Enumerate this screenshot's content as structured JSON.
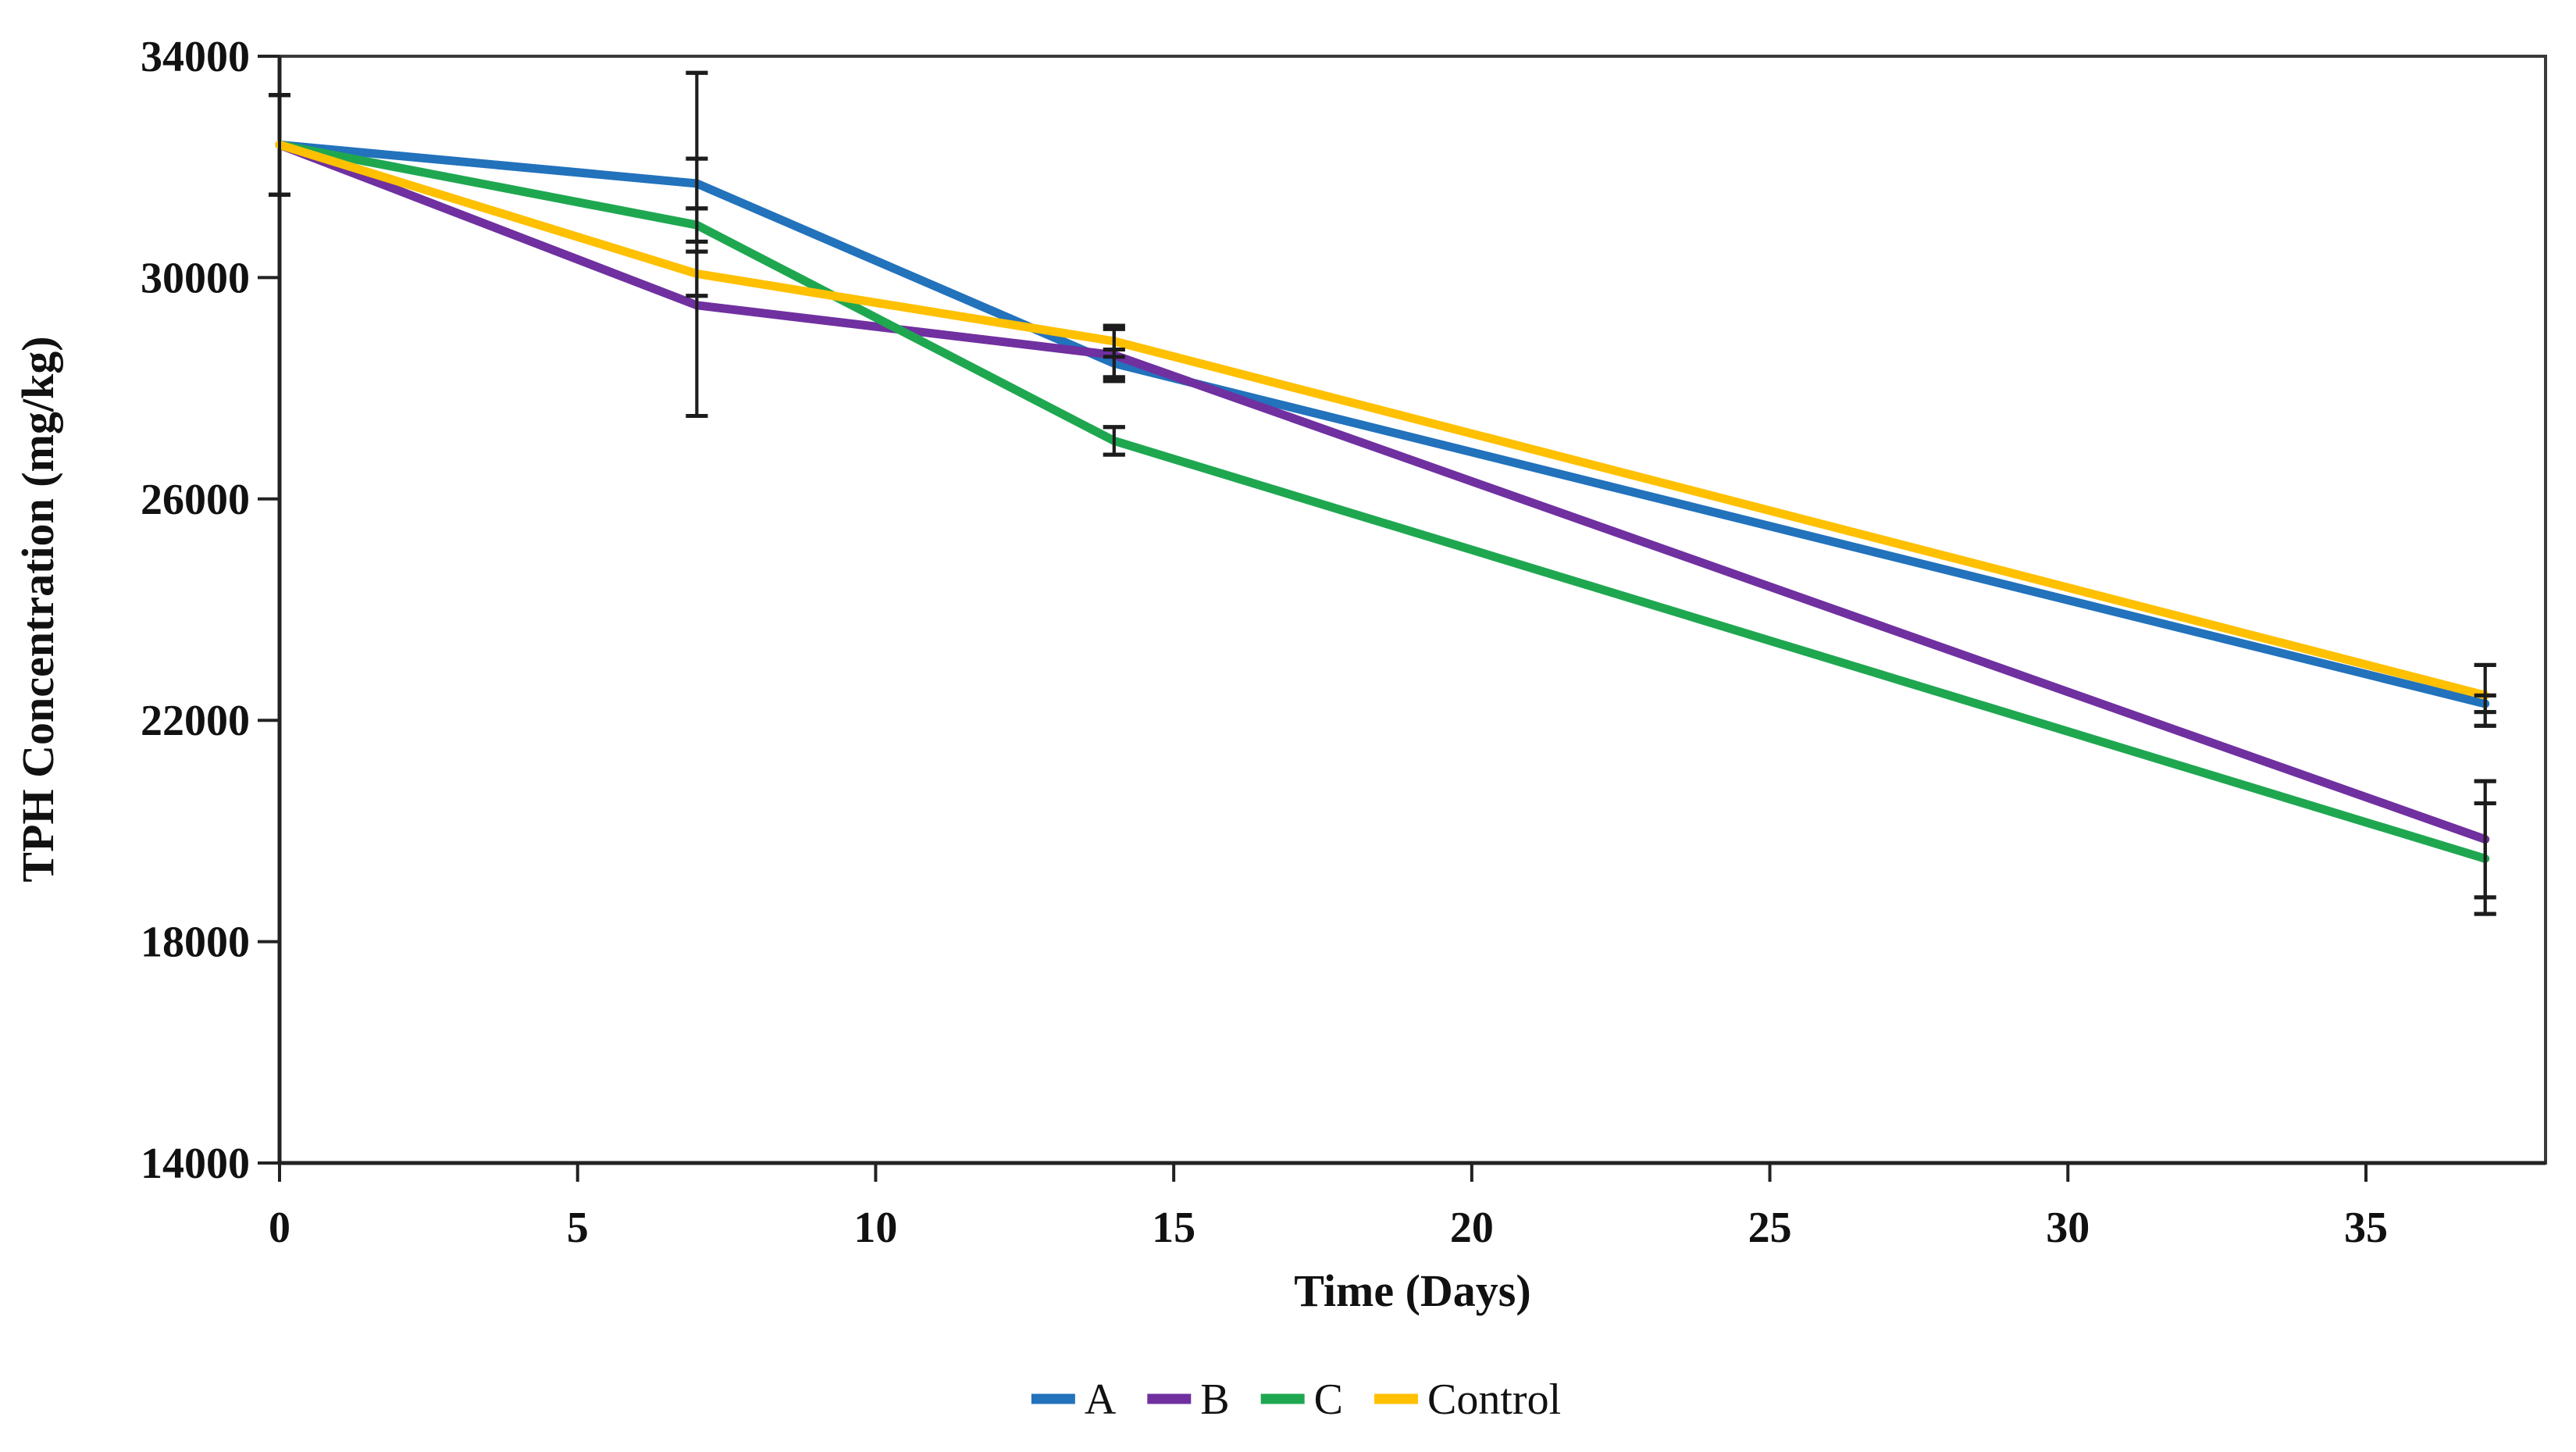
{
  "chart_data": {
    "type": "line",
    "title": "",
    "xlabel": "Time (Days)",
    "ylabel": "TPH Concentration (mg/kg)",
    "xlim": [
      0,
      38
    ],
    "ylim": [
      14000,
      34000
    ],
    "x_ticks": [
      0,
      5,
      10,
      15,
      20,
      25,
      30,
      35
    ],
    "y_ticks": [
      14000,
      18000,
      22000,
      26000,
      30000,
      34000
    ],
    "y_tick_labels": [
      "14000",
      "18000",
      "22000",
      "26000",
      "30000",
      "34000"
    ],
    "x_tick_labels": [
      "0",
      "5",
      "10",
      "15",
      "20",
      "25",
      "30",
      "35"
    ],
    "grid": false,
    "legend_position": "bottom",
    "error_bars": true,
    "x": [
      0,
      7,
      14,
      37
    ],
    "series": [
      {
        "name": "A",
        "color": "#2272BC",
        "values": [
          32400,
          31700,
          28450,
          22300
        ],
        "error_plus": [
          900,
          450,
          250,
          150
        ],
        "error_minus": [
          900,
          450,
          250,
          150
        ]
      },
      {
        "name": "B",
        "color": "#7030A0",
        "values": [
          32400,
          29500,
          28600,
          19850
        ],
        "error_plus": [
          900,
          4200,
          470,
          1050
        ],
        "error_minus": [
          900,
          2000,
          470,
          1050
        ]
      },
      {
        "name": "C",
        "color": "#1FA750",
        "values": [
          32400,
          30950,
          27050,
          19500
        ],
        "error_plus": [
          900,
          300,
          250,
          1000
        ],
        "error_minus": [
          900,
          300,
          250,
          1000
        ]
      },
      {
        "name": "Control",
        "color": "#FFC000",
        "values": [
          32400,
          30070,
          28850,
          22450
        ],
        "error_plus": [
          900,
          400,
          280,
          550
        ],
        "error_minus": [
          900,
          400,
          280,
          550
        ]
      }
    ]
  }
}
